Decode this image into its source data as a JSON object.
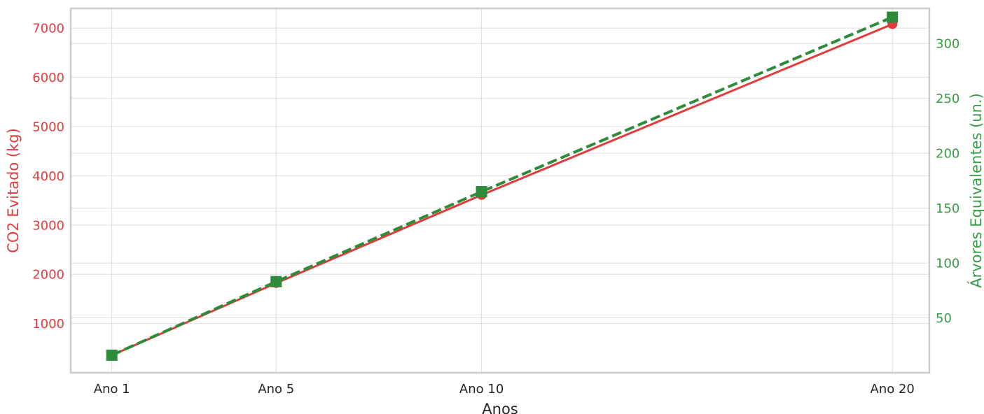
{
  "chart_data": {
    "type": "line",
    "title": "",
    "xlabel": "Anos",
    "ylabel": "CO2 Evitado (kg)",
    "y2label": "Árvores Equivalentes (un.)",
    "categories": [
      "Ano 1",
      "Ano 5",
      "Ano 10",
      "Ano 20"
    ],
    "x": [
      1,
      5,
      10,
      20
    ],
    "xlim": [
      0.0,
      20.9
    ],
    "ylim": [
      0,
      7400
    ],
    "y2lim": [
      0,
      332
    ],
    "yticks": [
      1000,
      2000,
      3000,
      4000,
      5000,
      6000,
      7000
    ],
    "y2ticks": [
      50,
      100,
      150,
      200,
      250,
      300
    ],
    "grid": true,
    "series": [
      {
        "axis": "left",
        "values": [
          355,
          1820,
          3610,
          7080
        ],
        "color": "#e03c3c",
        "marker": "circle",
        "linestyle": "solid"
      },
      {
        "axis": "right",
        "values": [
          16,
          83,
          165,
          324
        ],
        "color": "#2e8b3a",
        "marker": "square",
        "linestyle": "dashed"
      }
    ],
    "colors": {
      "left_axis": "#e03c3c",
      "right_axis": "#3a9a45",
      "grid": "#dedede",
      "frame": "#cccccc",
      "text": "#262626"
    }
  }
}
